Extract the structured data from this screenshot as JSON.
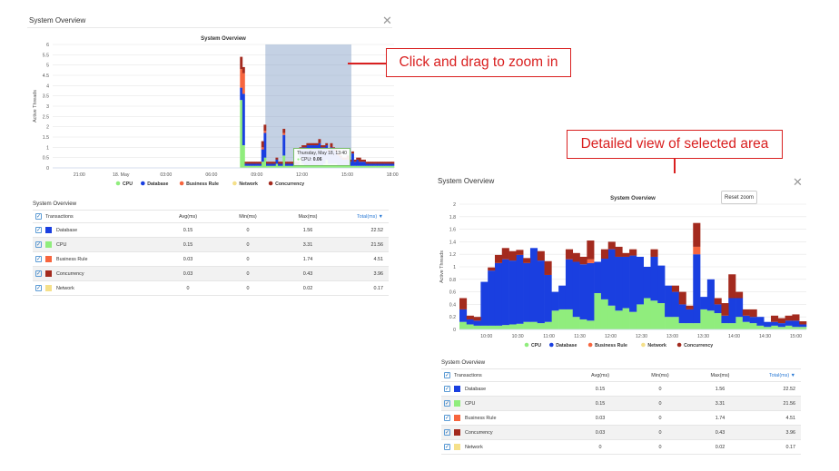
{
  "left_panel": {
    "title": "System Overview",
    "close_icon": "close-icon",
    "chart_title": "System Overview",
    "tooltip": {
      "date": "Thursday, May 18, 13:40",
      "series": "CPU",
      "value": "0.06"
    }
  },
  "right_panel": {
    "title": "System Overview",
    "close_icon": "close-icon",
    "chart_title": "System Overview",
    "reset_zoom": "Reset zoom"
  },
  "annotations": {
    "zoom_callout": "Click and drag to zoom in",
    "detail_callout": "Detailed view of selected area"
  },
  "chart_data": [
    {
      "type": "area",
      "title": "System Overview",
      "ylabel": "Active Threads",
      "yticks": [
        "0",
        "0.5",
        "1",
        "1.5",
        "2",
        "2.5",
        "3",
        "3.5",
        "4",
        "4.5",
        "5",
        "5.5",
        "6"
      ],
      "ylim": [
        0,
        6
      ],
      "xticks": [
        "21:00",
        "18. May",
        "03:00",
        "06:00",
        "09:00",
        "12:00",
        "15:00",
        "18:00"
      ],
      "legend": [
        "CPU",
        "Database",
        "Business Rule",
        "Network",
        "Concurrency"
      ],
      "selection": [
        "10:00",
        "15:00"
      ],
      "series": [
        {
          "name": "CPU",
          "color": "#90ed7d",
          "values": [
            0,
            0,
            0,
            0,
            0,
            0,
            0,
            0,
            0,
            0,
            0,
            0,
            0,
            0,
            0,
            0,
            0,
            0,
            0,
            0,
            0,
            0,
            0,
            0,
            0,
            0,
            0,
            0,
            0,
            0,
            0,
            0,
            0,
            0,
            0,
            0,
            0,
            0,
            0,
            0,
            0,
            0,
            0,
            0,
            0,
            0,
            0,
            0,
            0,
            0,
            0,
            0,
            0,
            0,
            0,
            0,
            0,
            0,
            0,
            0,
            0,
            0,
            0,
            0,
            0,
            0,
            0,
            0,
            0,
            0,
            0,
            0,
            0,
            0,
            0,
            0,
            0,
            0,
            0,
            3.3,
            1.1,
            0.1,
            0.1,
            0.1,
            0.1,
            0.1,
            0.1,
            0.1,
            0.3,
            0.5,
            0.1,
            0.1,
            0.1,
            0.1,
            0.2,
            0.1,
            0.1,
            0.6,
            0.1,
            0.1,
            0.1,
            0.1,
            0.1,
            0.1,
            0.5,
            0.2,
            0.1,
            0.1,
            0.1,
            0.1,
            0.1,
            0.1,
            0.1,
            0.1,
            0.2,
            0.4,
            0.2,
            0.2,
            0.2,
            0.2,
            0.1,
            0.1,
            0.1,
            0.1,
            0.1,
            0.1,
            0.1,
            0.1,
            0.1,
            0.1,
            0.1,
            0.1,
            0.1,
            0.1,
            0.1,
            0.1,
            0.1,
            0.1,
            0.1,
            0.1,
            0.1,
            0.1,
            0.1,
            0.1
          ]
        },
        {
          "name": "Database",
          "color": "#1a3fe0",
          "values": [
            0,
            0,
            0,
            0,
            0,
            0,
            0,
            0,
            0,
            0,
            0,
            0,
            0,
            0,
            0,
            0,
            0,
            0,
            0,
            0,
            0,
            0,
            0,
            0,
            0,
            0,
            0,
            0,
            0,
            0,
            0,
            0,
            0,
            0,
            0,
            0,
            0,
            0,
            0,
            0,
            0,
            0,
            0,
            0,
            0,
            0,
            0,
            0,
            0,
            0,
            0,
            0,
            0,
            0,
            0,
            0,
            0,
            0,
            0,
            0,
            0,
            0,
            0,
            0,
            0,
            0,
            0,
            0,
            0,
            0,
            0,
            0,
            0,
            0,
            0,
            0,
            0,
            0,
            0,
            0.6,
            2.5,
            0.1,
            0.1,
            0.1,
            0.1,
            0.1,
            0.1,
            0.1,
            0.6,
            1.2,
            0.1,
            0.1,
            0.1,
            0.1,
            0.2,
            0.1,
            0.1,
            1.0,
            0.1,
            0.1,
            0.1,
            0.1,
            0.1,
            0.1,
            0.4,
            0.8,
            0.9,
            1.0,
            1.0,
            1.0,
            1.0,
            1.0,
            1.1,
            0.9,
            0.8,
            0.7,
            0.6,
            0.8,
            0.7,
            0.6,
            0.5,
            0.4,
            0.3,
            0.3,
            0.3,
            0.2,
            0.6,
            0.2,
            0.3,
            0.2,
            0.2,
            0.2,
            0.1,
            0.1,
            0.1,
            0.1,
            0.1,
            0.1,
            0.1,
            0.1,
            0.1,
            0.1,
            0.1,
            0.1
          ]
        },
        {
          "name": "Business Rule",
          "color": "#f7653e",
          "values": [
            0,
            0,
            0,
            0,
            0,
            0,
            0,
            0,
            0,
            0,
            0,
            0,
            0,
            0,
            0,
            0,
            0,
            0,
            0,
            0,
            0,
            0,
            0,
            0,
            0,
            0,
            0,
            0,
            0,
            0,
            0,
            0,
            0,
            0,
            0,
            0,
            0,
            0,
            0,
            0,
            0,
            0,
            0,
            0,
            0,
            0,
            0,
            0,
            0,
            0,
            0,
            0,
            0,
            0,
            0,
            0,
            0,
            0,
            0,
            0,
            0,
            0,
            0,
            0,
            0,
            0,
            0,
            0,
            0,
            0,
            0,
            0,
            0,
            0,
            0,
            0,
            0,
            0,
            0,
            0.9,
            1.0,
            0,
            0,
            0,
            0,
            0,
            0,
            0,
            0.1,
            0.1,
            0,
            0,
            0,
            0,
            0,
            0,
            0,
            0.1,
            0,
            0,
            0,
            0,
            0,
            0,
            0,
            0,
            0,
            0,
            0,
            0,
            0,
            0,
            0,
            0,
            0,
            0,
            0,
            0,
            0,
            0,
            0,
            0,
            0,
            0,
            0,
            0,
            0,
            0,
            0,
            0,
            0,
            0,
            0,
            0,
            0,
            0,
            0,
            0,
            0,
            0,
            0,
            0,
            0,
            0
          ]
        },
        {
          "name": "Network",
          "color": "#f5e08a",
          "values": [
            0,
            0,
            0,
            0,
            0,
            0,
            0,
            0,
            0,
            0,
            0,
            0,
            0,
            0,
            0,
            0,
            0,
            0,
            0,
            0,
            0,
            0,
            0,
            0,
            0,
            0,
            0,
            0,
            0,
            0,
            0,
            0,
            0,
            0,
            0,
            0,
            0,
            0,
            0,
            0,
            0,
            0,
            0,
            0,
            0,
            0,
            0,
            0,
            0,
            0,
            0,
            0,
            0,
            0,
            0,
            0,
            0,
            0,
            0,
            0,
            0,
            0,
            0,
            0,
            0,
            0,
            0,
            0,
            0,
            0,
            0,
            0,
            0,
            0,
            0,
            0,
            0,
            0,
            0,
            0,
            0,
            0,
            0,
            0,
            0,
            0,
            0,
            0,
            0,
            0,
            0,
            0,
            0,
            0,
            0,
            0,
            0,
            0,
            0,
            0,
            0,
            0,
            0,
            0,
            0,
            0,
            0,
            0,
            0,
            0,
            0,
            0,
            0,
            0,
            0,
            0,
            0,
            0,
            0,
            0,
            0,
            0,
            0,
            0,
            0,
            0,
            0,
            0,
            0,
            0,
            0,
            0,
            0,
            0,
            0,
            0,
            0,
            0,
            0,
            0,
            0,
            0,
            0,
            0
          ]
        },
        {
          "name": "Concurrency",
          "color": "#a32a1e",
          "values": [
            0,
            0,
            0,
            0,
            0,
            0,
            0,
            0,
            0,
            0,
            0,
            0,
            0,
            0,
            0,
            0,
            0,
            0,
            0,
            0,
            0,
            0,
            0,
            0,
            0,
            0,
            0,
            0,
            0,
            0,
            0,
            0,
            0,
            0,
            0,
            0,
            0,
            0,
            0,
            0,
            0,
            0,
            0,
            0,
            0,
            0,
            0,
            0,
            0,
            0,
            0,
            0,
            0,
            0,
            0,
            0,
            0,
            0,
            0,
            0,
            0,
            0,
            0,
            0,
            0,
            0,
            0,
            0,
            0,
            0,
            0,
            0,
            0,
            0,
            0,
            0,
            0,
            0,
            0,
            0.6,
            0.3,
            0.1,
            0.1,
            0.1,
            0.1,
            0.1,
            0.1,
            0.1,
            0.3,
            0.3,
            0.1,
            0.1,
            0.1,
            0.1,
            0.1,
            0.1,
            0.1,
            0.2,
            0.1,
            0.1,
            0.1,
            0.1,
            0.1,
            0.1,
            0.1,
            0.1,
            0.1,
            0.1,
            0.1,
            0.1,
            0.1,
            0.1,
            0.2,
            0.1,
            0.1,
            0.1,
            0.1,
            0.2,
            0.1,
            0.1,
            0.1,
            0.1,
            0.1,
            0.1,
            0.2,
            0.1,
            0.1,
            0.1,
            0.1,
            0.2,
            0.1,
            0.1,
            0.1,
            0.1,
            0.1,
            0.1,
            0.1,
            0.1,
            0.1,
            0.1,
            0.1,
            0.1,
            0.1,
            0.1
          ]
        }
      ]
    },
    {
      "type": "area",
      "title": "System Overview",
      "ylabel": "Active Threads",
      "yticks": [
        "0",
        "0.2",
        "0.4",
        "0.6",
        "0.8",
        "1",
        "1.2",
        "1.4",
        "1.6",
        "1.8",
        "2"
      ],
      "ylim": [
        0,
        2
      ],
      "xticks": [
        "10:00",
        "10:30",
        "11:00",
        "11:30",
        "12:00",
        "12:30",
        "13:00",
        "13:30",
        "14:00",
        "14:30",
        "15:00"
      ],
      "legend": [
        "CPU",
        "Database",
        "Business Rule",
        "Network",
        "Concurrency"
      ],
      "series": [
        {
          "name": "CPU",
          "color": "#90ed7d",
          "values": [
            0.12,
            0.08,
            0.06,
            0.06,
            0.06,
            0.06,
            0.07,
            0.08,
            0.09,
            0.12,
            0.12,
            0.1,
            0.12,
            0.3,
            0.32,
            0.32,
            0.2,
            0.16,
            0.14,
            0.58,
            0.48,
            0.38,
            0.3,
            0.34,
            0.28,
            0.4,
            0.5,
            0.46,
            0.42,
            0.2,
            0.2,
            0.1,
            0.1,
            0.1,
            0.32,
            0.3,
            0.26,
            0.1,
            0.1,
            0.2,
            0.12,
            0.1,
            0.06,
            0.04,
            0.06,
            0.04,
            0.06,
            0.04,
            0.04
          ]
        },
        {
          "name": "Database",
          "color": "#1a3fe0",
          "values": [
            0.2,
            0.08,
            0.08,
            0.7,
            0.88,
            1.0,
            1.05,
            1.02,
            1.1,
            0.94,
            1.18,
            1.0,
            0.75,
            0.3,
            0.38,
            0.8,
            0.88,
            0.88,
            0.92,
            0.5,
            0.65,
            0.9,
            0.86,
            0.82,
            0.9,
            0.76,
            0.5,
            0.7,
            0.6,
            0.5,
            0.4,
            0.3,
            0.22,
            1.1,
            0.2,
            0.5,
            0.14,
            0.12,
            0.4,
            0.3,
            0.1,
            0.1,
            0.14,
            0.08,
            0.06,
            0.06,
            0.08,
            0.1,
            0.04
          ]
        },
        {
          "name": "Business Rule",
          "color": "#f7653e",
          "values": [
            0,
            0,
            0,
            0,
            0,
            0,
            0,
            0,
            0,
            0,
            0,
            0,
            0,
            0,
            0,
            0,
            0,
            0,
            0.06,
            0,
            0,
            0,
            0,
            0,
            0,
            0,
            0,
            0,
            0,
            0,
            0,
            0,
            0,
            0.12,
            0,
            0,
            0,
            0,
            0,
            0,
            0,
            0,
            0,
            0,
            0,
            0,
            0,
            0,
            0
          ]
        },
        {
          "name": "Network",
          "color": "#f5e08a",
          "values": [
            0,
            0,
            0,
            0,
            0,
            0,
            0,
            0,
            0,
            0,
            0,
            0,
            0,
            0,
            0,
            0,
            0,
            0,
            0,
            0,
            0,
            0,
            0,
            0,
            0,
            0,
            0,
            0,
            0,
            0,
            0,
            0,
            0,
            0,
            0,
            0,
            0,
            0,
            0,
            0,
            0,
            0,
            0,
            0,
            0,
            0,
            0,
            0,
            0
          ]
        },
        {
          "name": "Concurrency",
          "color": "#a32a1e",
          "values": [
            0.18,
            0.06,
            0.06,
            0.0,
            0.05,
            0.13,
            0.18,
            0.15,
            0.08,
            0.08,
            0.0,
            0.15,
            0.22,
            0.0,
            0.0,
            0.16,
            0.14,
            0.12,
            0.3,
            0.0,
            0.15,
            0.12,
            0.16,
            0.06,
            0.1,
            0.0,
            0.0,
            0.12,
            0.0,
            0.0,
            0.1,
            0.2,
            0.06,
            0.38,
            0.0,
            0.0,
            0.1,
            0.2,
            0.38,
            0.1,
            0.1,
            0.12,
            0.0,
            0.0,
            0.1,
            0.08,
            0.08,
            0.1,
            0.05
          ]
        }
      ]
    }
  ],
  "table": {
    "title": "System Overview",
    "headers": [
      "Transactions",
      "Avg(ms)",
      "Min(ms)",
      "Max(ms)",
      "Total(ms)"
    ],
    "sort_icon": "sort-desc-icon",
    "rows": [
      {
        "name": "Database",
        "color": "#1a3fe0",
        "avg": "0.15",
        "min": "0",
        "max": "1.56",
        "total": "22.52"
      },
      {
        "name": "CPU",
        "color": "#90ed7d",
        "avg": "0.15",
        "min": "0",
        "max": "3.31",
        "total": "21.56"
      },
      {
        "name": "Business Rule",
        "color": "#f7653e",
        "avg": "0.03",
        "min": "0",
        "max": "1.74",
        "total": "4.51"
      },
      {
        "name": "Concurrency",
        "color": "#a32a1e",
        "avg": "0.03",
        "min": "0",
        "max": "0.43",
        "total": "3.96"
      },
      {
        "name": "Network",
        "color": "#f5e08a",
        "avg": "0",
        "min": "0",
        "max": "0.02",
        "total": "0.17"
      }
    ]
  }
}
